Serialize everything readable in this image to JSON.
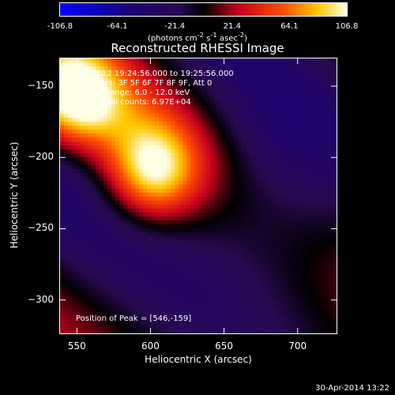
{
  "colorbar": {
    "ticks": [
      "-106.8",
      "-64.1",
      "-21.4",
      "21.4",
      "64.1",
      "106.8"
    ],
    "unit_prefix": "(photons cm",
    "unit_exp1": "-2",
    "unit_mid": " s",
    "unit_exp2": "-1",
    "unit_mid2": " asec",
    "unit_exp3": "-2",
    "unit_suffix": ")",
    "min": -106.8,
    "max": 106.8
  },
  "annotations": {
    "time_range": "5-Jul-2012 19:24:56.000 to 19:25:56.000",
    "detectors": "Detectors: 3F 5F 6F 7F 8F 9F, Att 0",
    "energy": "Energy Range: 6.0 - 12.0 keV",
    "method_counts": "Clean    Total counts: 6.97E+04",
    "peak": "Position of Peak = [546,-159]"
  },
  "timestamp": "30-Apr-2014 13:22",
  "chart_data": {
    "type": "heatmap",
    "title": "Reconstructed RHESSI Image",
    "xlabel": "Heliocentric X (arcsec)",
    "ylabel": "Heliocentric Y (arcsec)",
    "xlim": [
      538,
      727
    ],
    "ylim": [
      -324,
      -130
    ],
    "xticks": [
      550,
      600,
      650,
      700
    ],
    "yticks": [
      -150,
      -200,
      -250,
      -300
    ],
    "colormap": "colorbar",
    "value_range": [
      -106.8,
      106.8
    ],
    "peak_position": [
      546,
      -159
    ],
    "features": [
      {
        "x": 546,
        "y": -155,
        "value": 106.8
      },
      {
        "x": 600,
        "y": -208,
        "value": 100
      }
    ]
  }
}
